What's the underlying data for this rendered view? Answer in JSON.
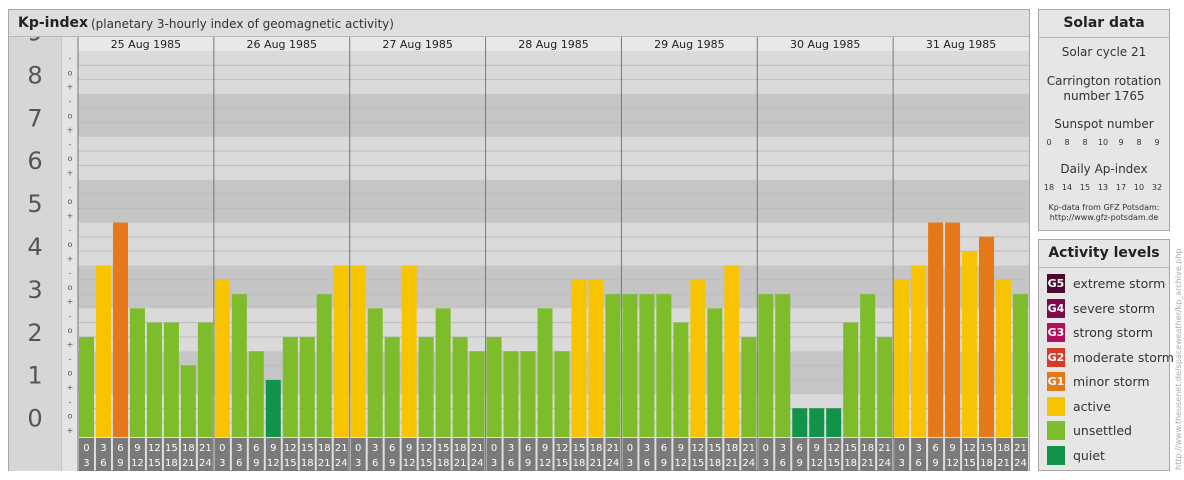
{
  "title": "Kp-index",
  "subtitle": "(planetary 3-hourly index of geomagnetic activity)",
  "chart_data": {
    "type": "bar",
    "ylim": [
      0,
      9
    ],
    "y_ticks": [
      "0",
      "1",
      "2",
      "3",
      "4",
      "5",
      "6",
      "7",
      "8",
      "9"
    ],
    "sub_ticks": [
      "+",
      "o",
      "-"
    ],
    "days": [
      "25 Aug 1985",
      "26 Aug 1985",
      "27 Aug 1985",
      "28 Aug 1985",
      "29 Aug 1985",
      "30 Aug 1985",
      "31 Aug 1985"
    ],
    "interval_starts": [
      "0",
      "3",
      "6",
      "9",
      "12",
      "15",
      "18",
      "21"
    ],
    "interval_ends": [
      "3",
      "6",
      "9",
      "12",
      "15",
      "18",
      "21",
      "24"
    ],
    "values": [
      2.33,
      4.0,
      5.0,
      3.0,
      2.67,
      2.67,
      1.67,
      2.67,
      3.67,
      3.33,
      2.0,
      1.33,
      2.33,
      2.33,
      3.33,
      4.0,
      4.0,
      3.0,
      2.33,
      4.0,
      2.33,
      3.0,
      2.33,
      2.0,
      2.33,
      2.0,
      2.0,
      3.0,
      2.0,
      3.67,
      3.67,
      3.33,
      3.33,
      3.33,
      3.33,
      2.67,
      3.67,
      3.0,
      4.0,
      2.33,
      3.33,
      3.33,
      0.67,
      0.67,
      0.67,
      2.67,
      3.33,
      2.33,
      3.67,
      4.0,
      5.0,
      5.0,
      4.33,
      4.67,
      3.67,
      3.33
    ],
    "categories_by_bar": [
      "unsettled",
      "active",
      "minor storm",
      "unsettled",
      "unsettled",
      "unsettled",
      "unsettled",
      "unsettled",
      "active",
      "unsettled",
      "unsettled",
      "quiet",
      "unsettled",
      "unsettled",
      "unsettled",
      "active",
      "active",
      "unsettled",
      "unsettled",
      "active",
      "unsettled",
      "unsettled",
      "unsettled",
      "unsettled",
      "unsettled",
      "unsettled",
      "unsettled",
      "unsettled",
      "unsettled",
      "active",
      "active",
      "unsettled",
      "unsettled",
      "unsettled",
      "unsettled",
      "unsettled",
      "active",
      "unsettled",
      "active",
      "unsettled",
      "unsettled",
      "unsettled",
      "quiet",
      "quiet",
      "quiet",
      "unsettled",
      "unsettled",
      "unsettled",
      "active",
      "active",
      "minor storm",
      "minor storm",
      "active",
      "minor storm",
      "active",
      "unsettled"
    ],
    "colors": {
      "quiet": "#11944a",
      "unsettled": "#7dbc2a",
      "active": "#f8c300",
      "minor storm": "#e57818",
      "moderate storm": "#d93a28",
      "strong storm": "#b3105c",
      "severe storm": "#7b0b4c",
      "extreme storm": "#4d0a2e"
    }
  },
  "solar": {
    "header": "Solar data",
    "cycle": "Solar cycle 21",
    "carrington_1": "Carrington rotation",
    "carrington_2": "number 1765",
    "sunspot_label": "Sunspot number",
    "sunspot_values": [
      "0",
      "8",
      "8",
      "10",
      "9",
      "8",
      "9"
    ],
    "ap_label": "Daily Ap-index",
    "ap_values": [
      "18",
      "14",
      "15",
      "13",
      "17",
      "10",
      "32"
    ],
    "source_1": "Kp-data from GFZ Potsdam:",
    "source_2": "http://www.gfz-potsdam.de"
  },
  "levels": {
    "header": "Activity levels",
    "items": [
      {
        "code": "G5",
        "label": "extreme storm",
        "color": "#4d0a2e"
      },
      {
        "code": "G4",
        "label": "severe storm",
        "color": "#7b0b4c"
      },
      {
        "code": "G3",
        "label": "strong storm",
        "color": "#b3105c"
      },
      {
        "code": "G2",
        "label": "moderate storm",
        "color": "#d93a28"
      },
      {
        "code": "G1",
        "label": "minor storm",
        "color": "#e57818"
      },
      {
        "code": "",
        "label": "active",
        "color": "#f8c300"
      },
      {
        "code": "",
        "label": "unsettled",
        "color": "#7dbc2a"
      },
      {
        "code": "",
        "label": "quiet",
        "color": "#11944a"
      }
    ]
  },
  "watermark": "http://www.theusenet.de/spaceweather/kp_archive.php"
}
